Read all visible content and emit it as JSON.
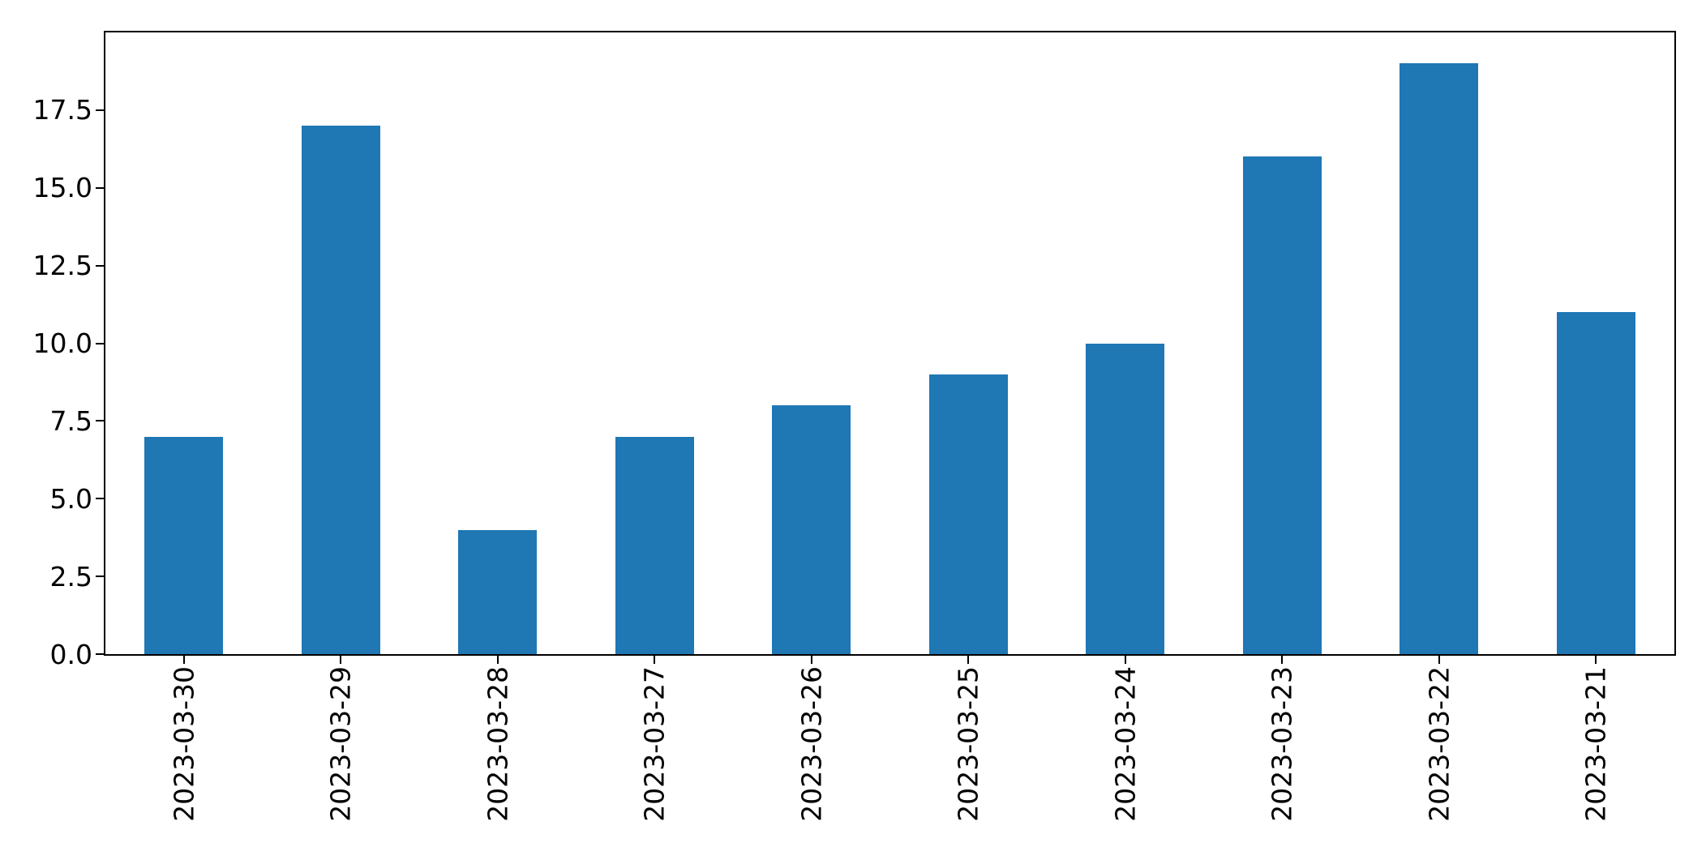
{
  "figure": {
    "background": "#ffffff",
    "title": ""
  },
  "chart_data": {
    "type": "bar",
    "title": "",
    "xlabel": "",
    "ylabel": "",
    "categories": [
      "2023-03-30",
      "2023-03-29",
      "2023-03-28",
      "2023-03-27",
      "2023-03-26",
      "2023-03-25",
      "2023-03-24",
      "2023-03-23",
      "2023-03-22",
      "2023-03-21"
    ],
    "values": [
      7,
      17,
      4,
      7,
      8,
      9,
      10,
      16,
      19,
      11
    ],
    "ylim": [
      0,
      20
    ],
    "yticks": [
      0,
      2.5,
      5,
      7.5,
      10,
      12.5,
      15,
      17.5
    ],
    "ytick_labels": [
      "0.0",
      "2.5",
      "5.0",
      "7.5",
      "10.0",
      "12.5",
      "15.0",
      "17.5"
    ],
    "x_tick_rotation_deg": 90,
    "bar_width_fraction_of_slot": 0.5,
    "bar_color": "#1f77b4",
    "axis_color": "#000000",
    "text_color": "#000000",
    "grid": false,
    "legend": false
  }
}
